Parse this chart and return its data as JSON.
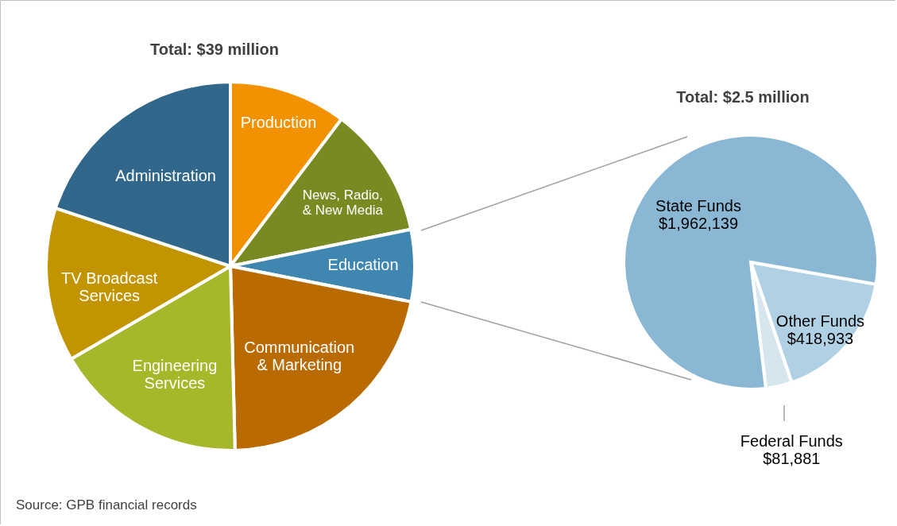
{
  "chart_data": [
    {
      "type": "pie",
      "title": "Total: $39 million",
      "categories": [
        "Production",
        "News, Radio,\n& New Media",
        "Education",
        "Communication\n& Marketing",
        "Engineering\nServices",
        "TV Broadcast\nServices",
        "Administration"
      ],
      "values": [
        10.3,
        11.5,
        6.3,
        21.5,
        17.0,
        13.5,
        19.9
      ],
      "colors": [
        "#f39200",
        "#7a8a22",
        "#3f87b1",
        "#b96a00",
        "#a6b72a",
        "#c29400",
        "#31678a"
      ],
      "annotations": [
        "Source: GPB financial records"
      ]
    },
    {
      "type": "pie",
      "title": "Total:  $2.5 million",
      "categories": [
        "Other Funds",
        "Federal Funds",
        "State Funds"
      ],
      "values": [
        418933,
        81881,
        1962139
      ],
      "value_labels": [
        "$418,933",
        "$81,881",
        "$1,962,139"
      ],
      "colors": [
        "#b0d0e3",
        "#d6e6ef",
        "#8ab8d4"
      ]
    }
  ]
}
